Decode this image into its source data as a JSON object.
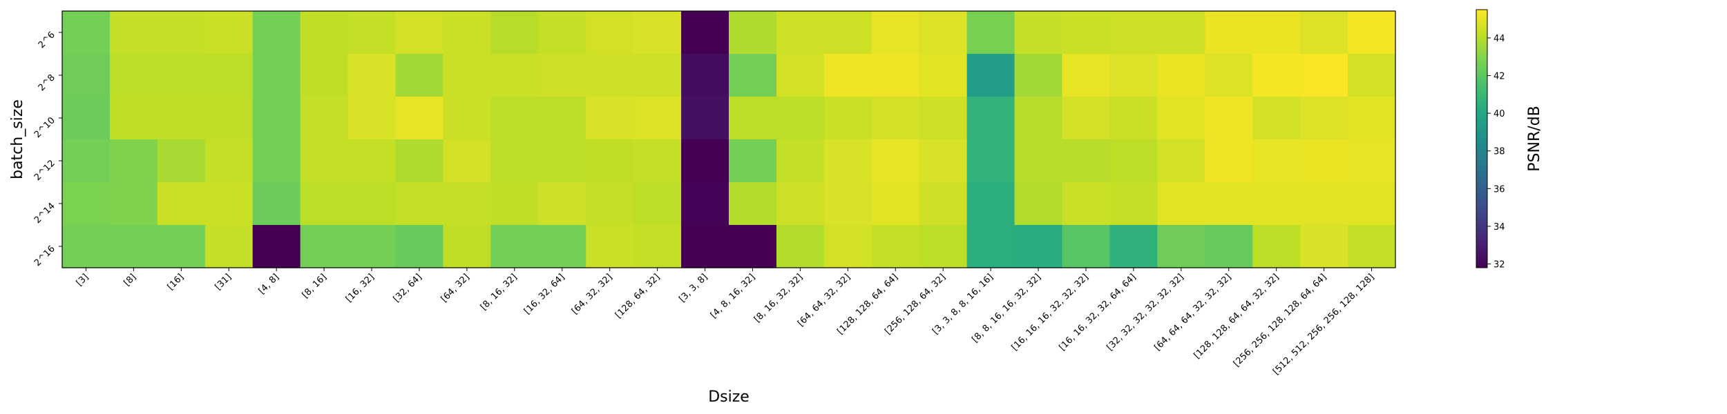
{
  "chart_data": {
    "type": "heatmap",
    "xlabel": "Dsize",
    "ylabel": "batch_size",
    "colorbar_label": "PSNR/dB",
    "colormap": "viridis",
    "vmin": 31.8,
    "vmax": 45.5,
    "colorbar_ticks": [
      32,
      34,
      36,
      38,
      40,
      42,
      44
    ],
    "x_categories": [
      "[3]",
      "[8]",
      "[16]",
      "[31]",
      "[4, 8]",
      "[8, 16]",
      "[16, 32]",
      "[32, 64]",
      "[64, 32]",
      "[8, 16, 32]",
      "[16, 32, 64]",
      "[64, 32, 32]",
      "[128, 64, 32]",
      "[3, 3, 8]",
      "[4, 8, 16, 32]",
      "[8, 16, 32, 32]",
      "[64, 64, 32, 32]",
      "[128, 128, 64, 64]",
      "[256, 128, 64, 32]",
      "[3, 3, 8, 8, 16, 16]",
      "[8, 8, 16, 16, 32, 32]",
      "[16, 16, 16, 32, 32, 32]",
      "[16, 16, 32, 32, 64, 64]",
      "[32, 32, 32, 32, 32, 32]",
      "[64, 64, 64, 32, 32, 32]",
      "[128, 128, 64, 64, 32, 32]",
      "[256, 256, 128, 128, 64, 64]",
      "[512, 512, 256, 256, 128, 128]"
    ],
    "y_categories": [
      "2^6",
      "2^8",
      "2^10",
      "2^12",
      "2^14",
      "2^16"
    ],
    "values": [
      [
        42.6,
        44.3,
        44.3,
        44.4,
        42.6,
        44.2,
        44.3,
        44.6,
        44.4,
        44.0,
        44.3,
        44.6,
        44.7,
        31.8,
        43.8,
        44.5,
        44.5,
        45.0,
        44.8,
        42.7,
        44.3,
        44.4,
        44.5,
        44.5,
        45.1,
        45.1,
        44.8,
        45.3
      ],
      [
        42.5,
        44.1,
        44.1,
        44.1,
        42.6,
        44.2,
        44.7,
        43.6,
        44.4,
        44.4,
        44.5,
        44.5,
        44.5,
        32.3,
        42.6,
        44.6,
        45.2,
        45.2,
        44.9,
        39.4,
        43.6,
        45.0,
        44.8,
        45.1,
        44.8,
        45.3,
        45.4,
        44.6
      ],
      [
        42.4,
        44.2,
        44.2,
        44.2,
        42.6,
        44.3,
        44.7,
        45.0,
        44.4,
        44.1,
        44.1,
        44.7,
        44.8,
        32.4,
        44.1,
        44.1,
        44.4,
        44.6,
        44.5,
        40.7,
        44.0,
        44.6,
        44.4,
        44.9,
        45.2,
        44.6,
        44.8,
        44.9
      ],
      [
        42.6,
        42.9,
        43.7,
        44.3,
        42.6,
        44.3,
        44.3,
        43.8,
        44.6,
        44.1,
        44.1,
        44.2,
        44.3,
        31.8,
        42.6,
        44.3,
        44.7,
        45.0,
        44.7,
        40.7,
        44.0,
        44.0,
        44.1,
        44.6,
        45.2,
        45.0,
        45.1,
        45.0
      ],
      [
        42.8,
        42.9,
        44.4,
        44.4,
        42.4,
        44.1,
        44.1,
        44.3,
        44.3,
        44.2,
        44.5,
        44.3,
        44.1,
        31.9,
        43.9,
        44.5,
        44.7,
        44.9,
        44.5,
        40.4,
        43.9,
        44.4,
        44.3,
        44.9,
        44.9,
        44.9,
        44.9,
        44.9
      ],
      [
        42.6,
        42.6,
        42.6,
        44.3,
        31.8,
        42.6,
        42.6,
        42.3,
        44.2,
        42.6,
        42.6,
        44.4,
        44.3,
        31.8,
        31.8,
        43.9,
        44.6,
        44.3,
        44.1,
        40.4,
        40.3,
        41.9,
        40.6,
        42.5,
        42.3,
        44.1,
        44.7,
        44.3
      ]
    ]
  }
}
